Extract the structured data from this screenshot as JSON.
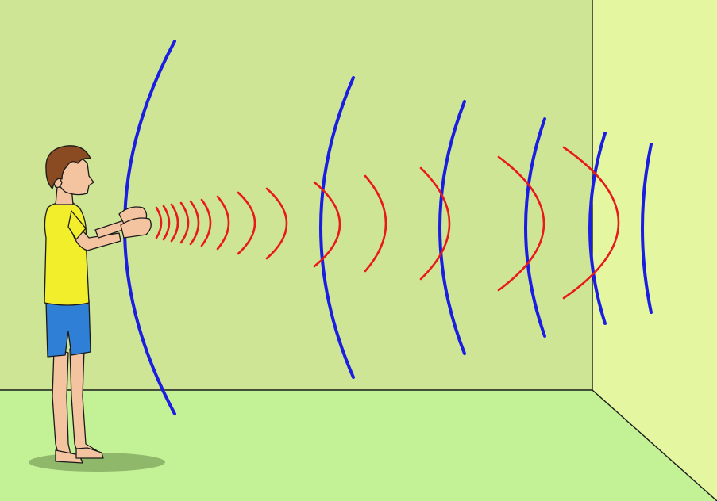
{
  "scene": {
    "description_free": true
  },
  "colors": {
    "back_wall": "#cfe596",
    "side_wall": "#e4f6a0",
    "floor": "#c3f196",
    "outline": "#1a1a1a",
    "outgoing_wave": "#e8191b",
    "reflected_wave": "#1a1ee0",
    "shirt": "#f2ee2c",
    "shorts": "#2f7fd6",
    "hair": "#8a4a22",
    "skin": "#f4c4a0",
    "shadow": "#8fb86a"
  },
  "icons": {
    "person": "boy-clapping-figure",
    "outgoing_waves": "red-sound-wave-arcs",
    "reflected_waves": "blue-echo-wave-arcs"
  }
}
